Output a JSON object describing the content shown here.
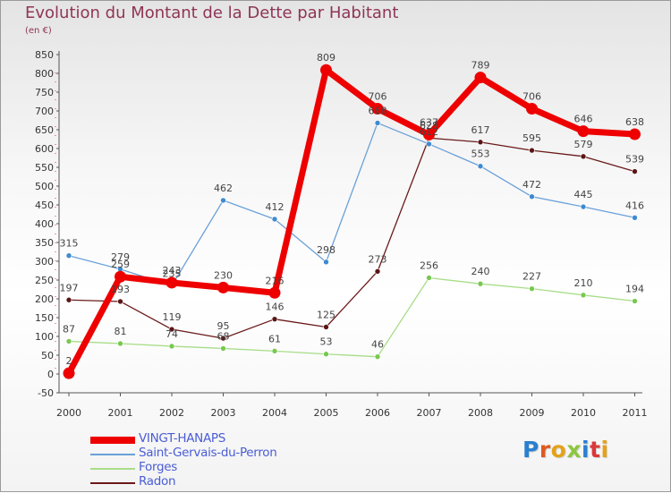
{
  "title": "Evolution du Montant de la Dette par Habitant",
  "unit_label": "(en €)",
  "logo": {
    "text": "Proxiti",
    "colors": [
      "#2a7fd0",
      "#e05a20",
      "#e4a21a",
      "#8dc63f",
      "#2a7fd0",
      "#d93a3a",
      "#e4a21a"
    ]
  },
  "chart_data": {
    "type": "line",
    "x": [
      "2000",
      "2001",
      "2002",
      "2003",
      "2004",
      "2005",
      "2006",
      "2007",
      "2008",
      "2009",
      "2010",
      "2011"
    ],
    "ylim": [
      -50,
      850
    ],
    "yticks": [
      -50,
      0,
      50,
      100,
      150,
      200,
      250,
      300,
      350,
      400,
      450,
      500,
      550,
      600,
      650,
      700,
      750,
      800,
      850
    ],
    "grid": false,
    "legend_position": "bottom-left",
    "series": [
      {
        "name": "Radon",
        "color": "#6b1a1a",
        "point_color": "#5a1515",
        "values": [
          197,
          193,
          119,
          95,
          146,
          125,
          273,
          628,
          617,
          595,
          579,
          539
        ]
      },
      {
        "name": "Forges",
        "color": "#a8dd88",
        "point_color": "#78c850",
        "values": [
          87,
          81,
          74,
          68,
          61,
          53,
          46,
          256,
          240,
          227,
          210,
          194
        ]
      },
      {
        "name": "Saint-Gervais-du-Perron",
        "color": "#6aa0d8",
        "point_color": "#3d8ad0",
        "values": [
          315,
          279,
          235,
          462,
          412,
          298,
          668,
          612,
          553,
          472,
          445,
          416
        ]
      },
      {
        "name": "VINGT-HANAPS",
        "color": "#ee0000",
        "point_color": "#ee0000",
        "values": [
          2,
          259,
          243,
          230,
          216,
          809,
          706,
          637,
          789,
          706,
          646,
          638
        ]
      }
    ]
  },
  "legend": [
    {
      "label": "VINGT-HANAPS",
      "color": "#ee0000"
    },
    {
      "label": "Saint-Gervais-du-Perron",
      "color": "#6aa0d8"
    },
    {
      "label": "Forges",
      "color": "#a8dd88"
    },
    {
      "label": "Radon",
      "color": "#6b1a1a"
    }
  ]
}
